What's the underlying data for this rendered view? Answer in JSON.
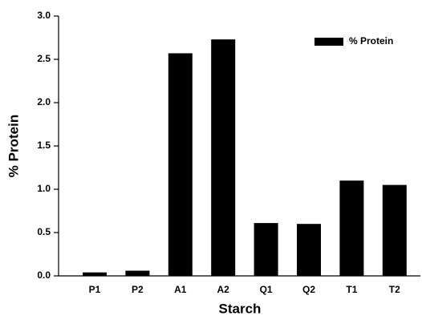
{
  "chart_data": {
    "type": "bar",
    "xlabel": "Starch",
    "ylabel": "% Protein",
    "categories": [
      "P1",
      "P2",
      "A1",
      "A2",
      "Q1",
      "Q2",
      "T1",
      "T2"
    ],
    "series": [
      {
        "name": "% Protein",
        "color": "#000000",
        "values": [
          0.04,
          0.06,
          2.57,
          2.73,
          0.61,
          0.6,
          1.1,
          1.05
        ]
      }
    ],
    "ylim": [
      0,
      3
    ],
    "yticks": [
      {
        "value": 0,
        "label": "0.0"
      },
      0.5,
      {
        "value": 1,
        "label": "1.0"
      },
      1.5,
      {
        "value": 2,
        "label": "2.0"
      },
      2.5,
      {
        "value": 3,
        "label": "3.0"
      }
    ],
    "legend": "upper right"
  }
}
